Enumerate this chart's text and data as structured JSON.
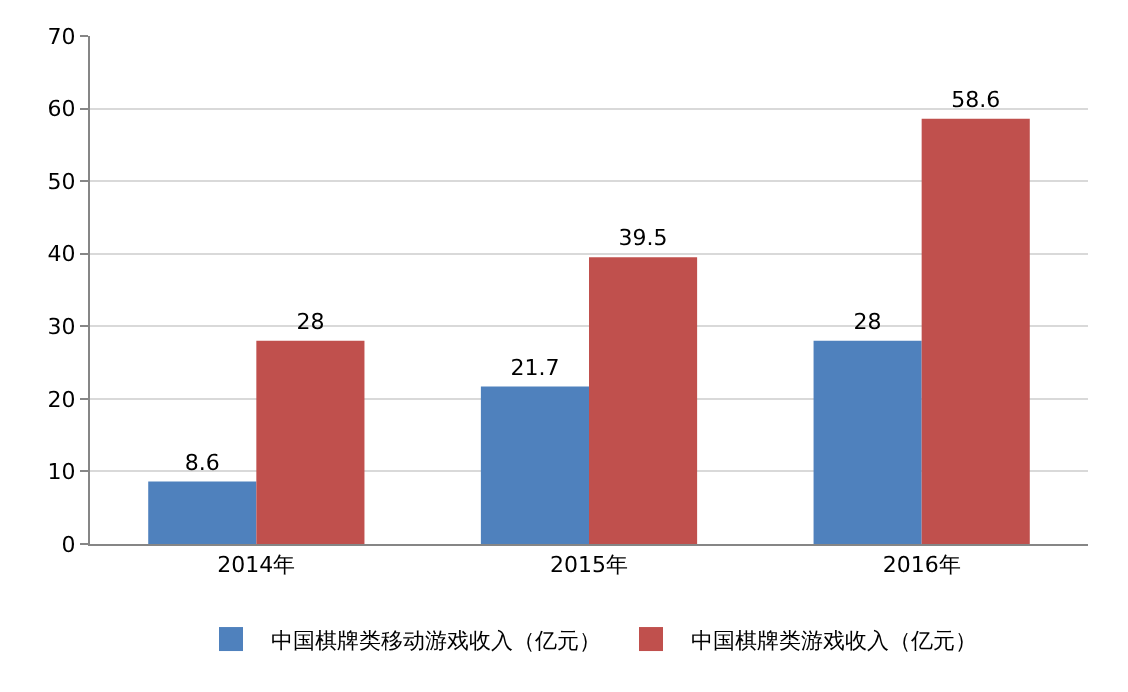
{
  "chart_data": {
    "type": "bar",
    "categories": [
      "2014年",
      "2015年",
      "2016年"
    ],
    "series": [
      {
        "name": "中国棋牌类移动游戏收入（亿元）",
        "color": "#4f81bd",
        "values": [
          8.6,
          21.7,
          28
        ]
      },
      {
        "name": "中国棋牌类游戏收入（亿元）",
        "color": "#c0504d",
        "values": [
          28,
          39.5,
          58.6
        ]
      }
    ],
    "ylim": [
      0,
      70
    ],
    "yticks": [
      0,
      10,
      20,
      30,
      40,
      50,
      60,
      70
    ],
    "grid": "y",
    "legend": "bottom",
    "data_labels": true
  }
}
